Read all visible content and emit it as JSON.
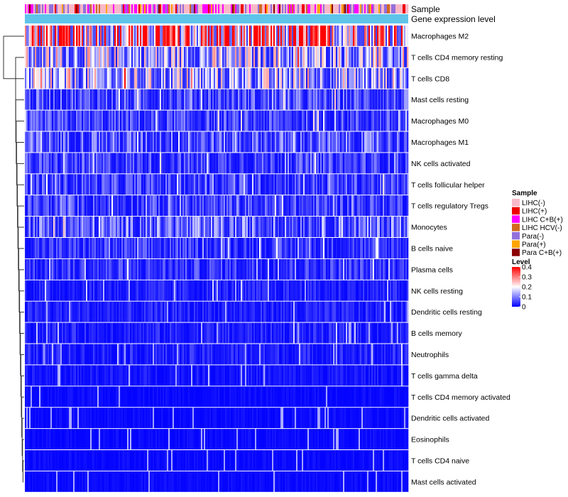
{
  "chart_data": {
    "type": "heatmap",
    "title": "",
    "annotation_tracks": [
      "Sample",
      "Gene expression level"
    ],
    "gene_expression_color": "#5fc4ea",
    "rows": [
      {
        "name": "Macrophages M2",
        "mean": 0.32
      },
      {
        "name": "T cells CD4 memory resting",
        "mean": 0.16
      },
      {
        "name": "T cells CD8",
        "mean": 0.15
      },
      {
        "name": "Mast cells resting",
        "mean": 0.07
      },
      {
        "name": "Macrophages M0",
        "mean": 0.06
      },
      {
        "name": "Macrophages M1",
        "mean": 0.08
      },
      {
        "name": "NK cells activated",
        "mean": 0.06
      },
      {
        "name": "T cells follicular helper",
        "mean": 0.06
      },
      {
        "name": "T cells regulatory  Tregs",
        "mean": 0.06
      },
      {
        "name": "Monocytes",
        "mean": 0.09
      },
      {
        "name": "B cells naive",
        "mean": 0.05
      },
      {
        "name": "Plasma cells",
        "mean": 0.05
      },
      {
        "name": "NK cells resting",
        "mean": 0.03
      },
      {
        "name": "Dendritic cells resting",
        "mean": 0.03
      },
      {
        "name": "B cells memory",
        "mean": 0.03
      },
      {
        "name": "Neutrophils",
        "mean": 0.03
      },
      {
        "name": "T cells gamma delta",
        "mean": 0.02
      },
      {
        "name": "T cells CD4 memory activated",
        "mean": 0.01
      },
      {
        "name": "Dendritic cells activated",
        "mean": 0.01
      },
      {
        "name": "Eosinophils",
        "mean": 0.01
      },
      {
        "name": "T cells CD4 naive",
        "mean": 0.01
      },
      {
        "name": "Mast cells activated",
        "mean": 0.01
      }
    ],
    "sample_legend": {
      "title": "Sample",
      "items": [
        {
          "label": "LIHC(-)",
          "color": "#f9b8c8"
        },
        {
          "label": "LIHC(+)",
          "color": "#ee0000"
        },
        {
          "label": "LIHC C+B(+)",
          "color": "#ff00ff"
        },
        {
          "label": "LIHC HCV(-)",
          "color": "#d2691e"
        },
        {
          "label": "Para(-)",
          "color": "#9370db"
        },
        {
          "label": "Para(+)",
          "color": "#ffa500"
        },
        {
          "label": "Para C+B(+)",
          "color": "#8b0000"
        }
      ]
    },
    "level_legend": {
      "title": "Level",
      "ticks": [
        "0.4",
        "0.3",
        "0.2",
        "0.1",
        "0"
      ],
      "tick_values": [
        0.4,
        0.3,
        0.2,
        0.1,
        0
      ],
      "range": [
        0,
        0.4
      ],
      "colors": [
        "#0000ff",
        "#ffffff",
        "#ff0000"
      ]
    }
  }
}
